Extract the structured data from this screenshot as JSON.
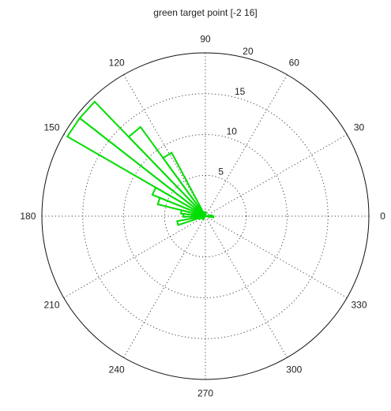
{
  "chart_data": {
    "type": "polar-rose",
    "title": "green target point [-2 16]",
    "r_max": 20,
    "radial_ticks": [
      5,
      10,
      15,
      20
    ],
    "angle_ticks": [
      0,
      30,
      60,
      90,
      120,
      150,
      180,
      210,
      240,
      270,
      300,
      330
    ],
    "angle_tick_labels": [
      "0",
      "30",
      "60",
      "90",
      "120",
      "150",
      "180",
      "210",
      "240",
      "270",
      "300",
      "330"
    ],
    "radial_tick_labels": [
      "5",
      "10",
      "15",
      "20"
    ],
    "grid": true,
    "series": [
      {
        "color": "#00dd00",
        "bins": [
          {
            "theta": [
              -8,
              0
            ],
            "r": 1.0
          },
          {
            "theta": [
              0,
              8
            ],
            "r": 0.8
          },
          {
            "theta": [
              82,
              90
            ],
            "r": 0.5
          },
          {
            "theta": [
              100,
              108
            ],
            "r": 0.5
          },
          {
            "theta": [
              118,
              126
            ],
            "r": 8.8
          },
          {
            "theta": [
              126,
              134
            ],
            "r": 13.5
          },
          {
            "theta": [
              134,
              142
            ],
            "r": 19.5
          },
          {
            "theta": [
              142,
              150
            ],
            "r": 19.5
          },
          {
            "theta": [
              150,
              158
            ],
            "r": 7.0
          },
          {
            "theta": [
              158,
              166
            ],
            "r": 6.0
          },
          {
            "theta": [
              166,
              174
            ],
            "r": 3.0
          },
          {
            "theta": [
              174,
              182
            ],
            "r": 2.7
          },
          {
            "theta": [
              182,
              190
            ],
            "r": 1.8
          },
          {
            "theta": [
              190,
              198
            ],
            "r": 3.5
          },
          {
            "theta": [
              198,
              206
            ],
            "r": 0.8
          },
          {
            "theta": [
              230,
              238
            ],
            "r": 0.5
          }
        ]
      }
    ]
  }
}
